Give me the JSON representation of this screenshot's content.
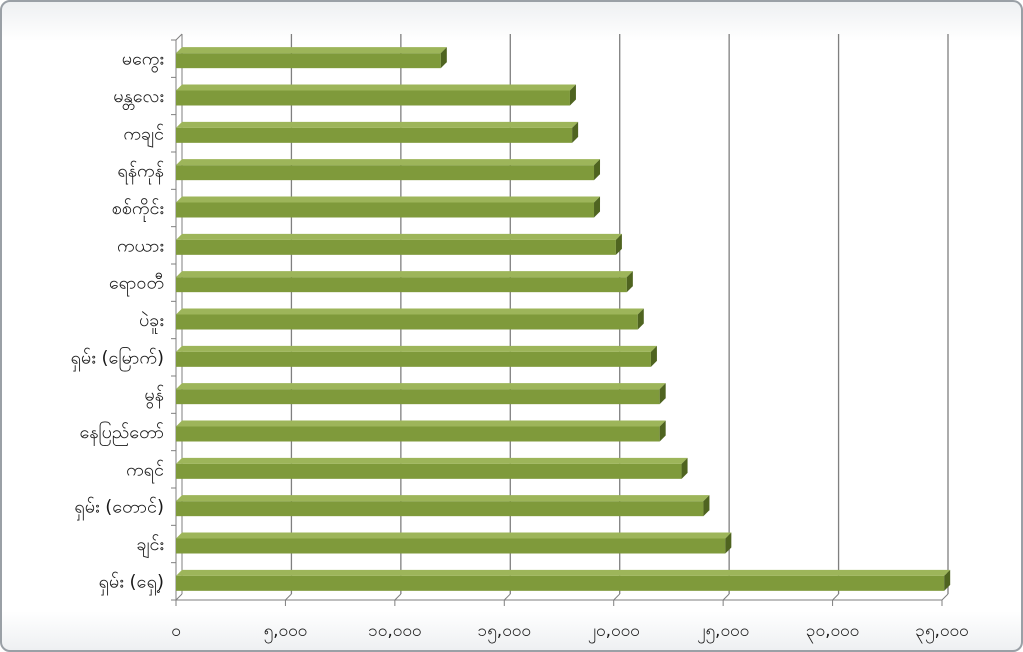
{
  "chart_data": {
    "type": "bar",
    "orientation": "horizontal",
    "title": "",
    "xlabel": "",
    "ylabel": "",
    "categories": [
      "မကွေး",
      "မန္တလေး",
      "ကချင်",
      "ရန်ကုန်",
      "စစ်ကိုင်း",
      "ကယား",
      "ရော၀တီ",
      "ပဲခူး",
      "ရှမ်း (မြောက်)",
      "မွန်",
      "နေပြည်တော်",
      "ကရင်",
      "ရှမ်း (တောင်)",
      "ချင်း",
      "ရှမ်း (ရှေ့)"
    ],
    "values": [
      12100,
      18000,
      18100,
      19100,
      19100,
      20100,
      20600,
      21100,
      21700,
      22100,
      22100,
      23100,
      24100,
      25100,
      35100
    ],
    "xlim": [
      0,
      35000
    ],
    "xticks": [
      0,
      5000,
      10000,
      15000,
      20000,
      25000,
      30000,
      35000
    ],
    "xtick_labels": [
      "၀",
      "၅,၀၀၀",
      "၁၀,၀၀၀",
      "၁၅,၀၀၀",
      "၂၀,၀၀၀",
      "၂၅,၀၀၀",
      "၃၀,၀၀၀",
      "၃၅,၀၀၀"
    ],
    "grid": true,
    "legend": "none",
    "colors": {
      "bar": "#7f9a3b",
      "bar_top": "#9db55a",
      "bar_side": "#4f6420",
      "grid": "#7f7f7f",
      "text": "#1a1a1a"
    }
  }
}
